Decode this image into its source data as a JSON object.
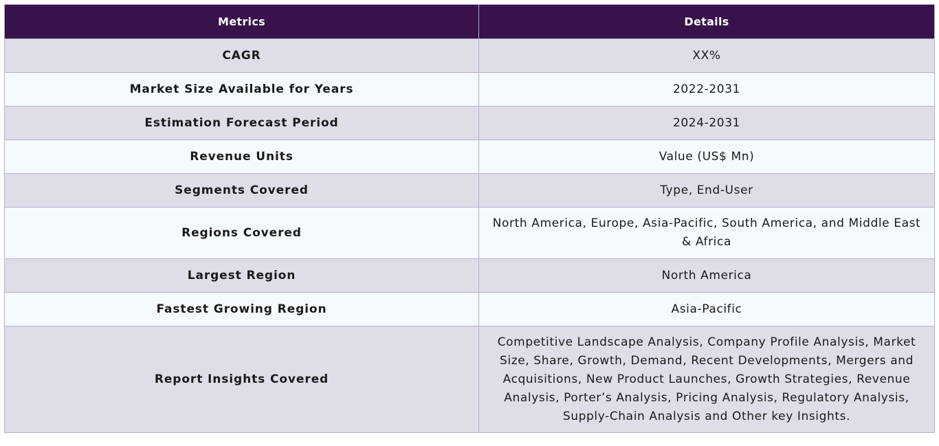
{
  "table": {
    "headers": {
      "metrics": "Metrics",
      "details": "Details"
    },
    "rows": [
      {
        "metric": "CAGR",
        "detail": "XX%"
      },
      {
        "metric": "Market Size Available for Years",
        "detail": "2022-2031"
      },
      {
        "metric": "Estimation Forecast Period",
        "detail": "2024-2031"
      },
      {
        "metric": "Revenue Units",
        "detail": "Value (US$ Mn)"
      },
      {
        "metric": "Segments Covered",
        "detail": "Type, End-User"
      },
      {
        "metric": "Regions Covered",
        "detail": "North America, Europe, Asia-Pacific, South America, and Middle East & Africa"
      },
      {
        "metric": "Largest Region",
        "detail": "North America"
      },
      {
        "metric": "Fastest Growing Region",
        "detail": "Asia-Pacific"
      },
      {
        "metric": "Report Insights Covered",
        "detail": "Competitive Landscape Analysis, Company Profile Analysis, Market Size, Share, Growth, Demand, Recent Developments, Mergers and Acquisitions, New Product Launches, Growth Strategies, Revenue Analysis, Porter’s Analysis, Pricing Analysis, Regulatory Analysis, Supply-Chain Analysis and Other key Insights."
      }
    ]
  },
  "colors": {
    "header_bg": "#37124b",
    "header_text": "#ffffff",
    "row_odd_bg": "#e0dde9",
    "row_even_bg": "#f5fafe",
    "border": "#b8b0cc"
  }
}
